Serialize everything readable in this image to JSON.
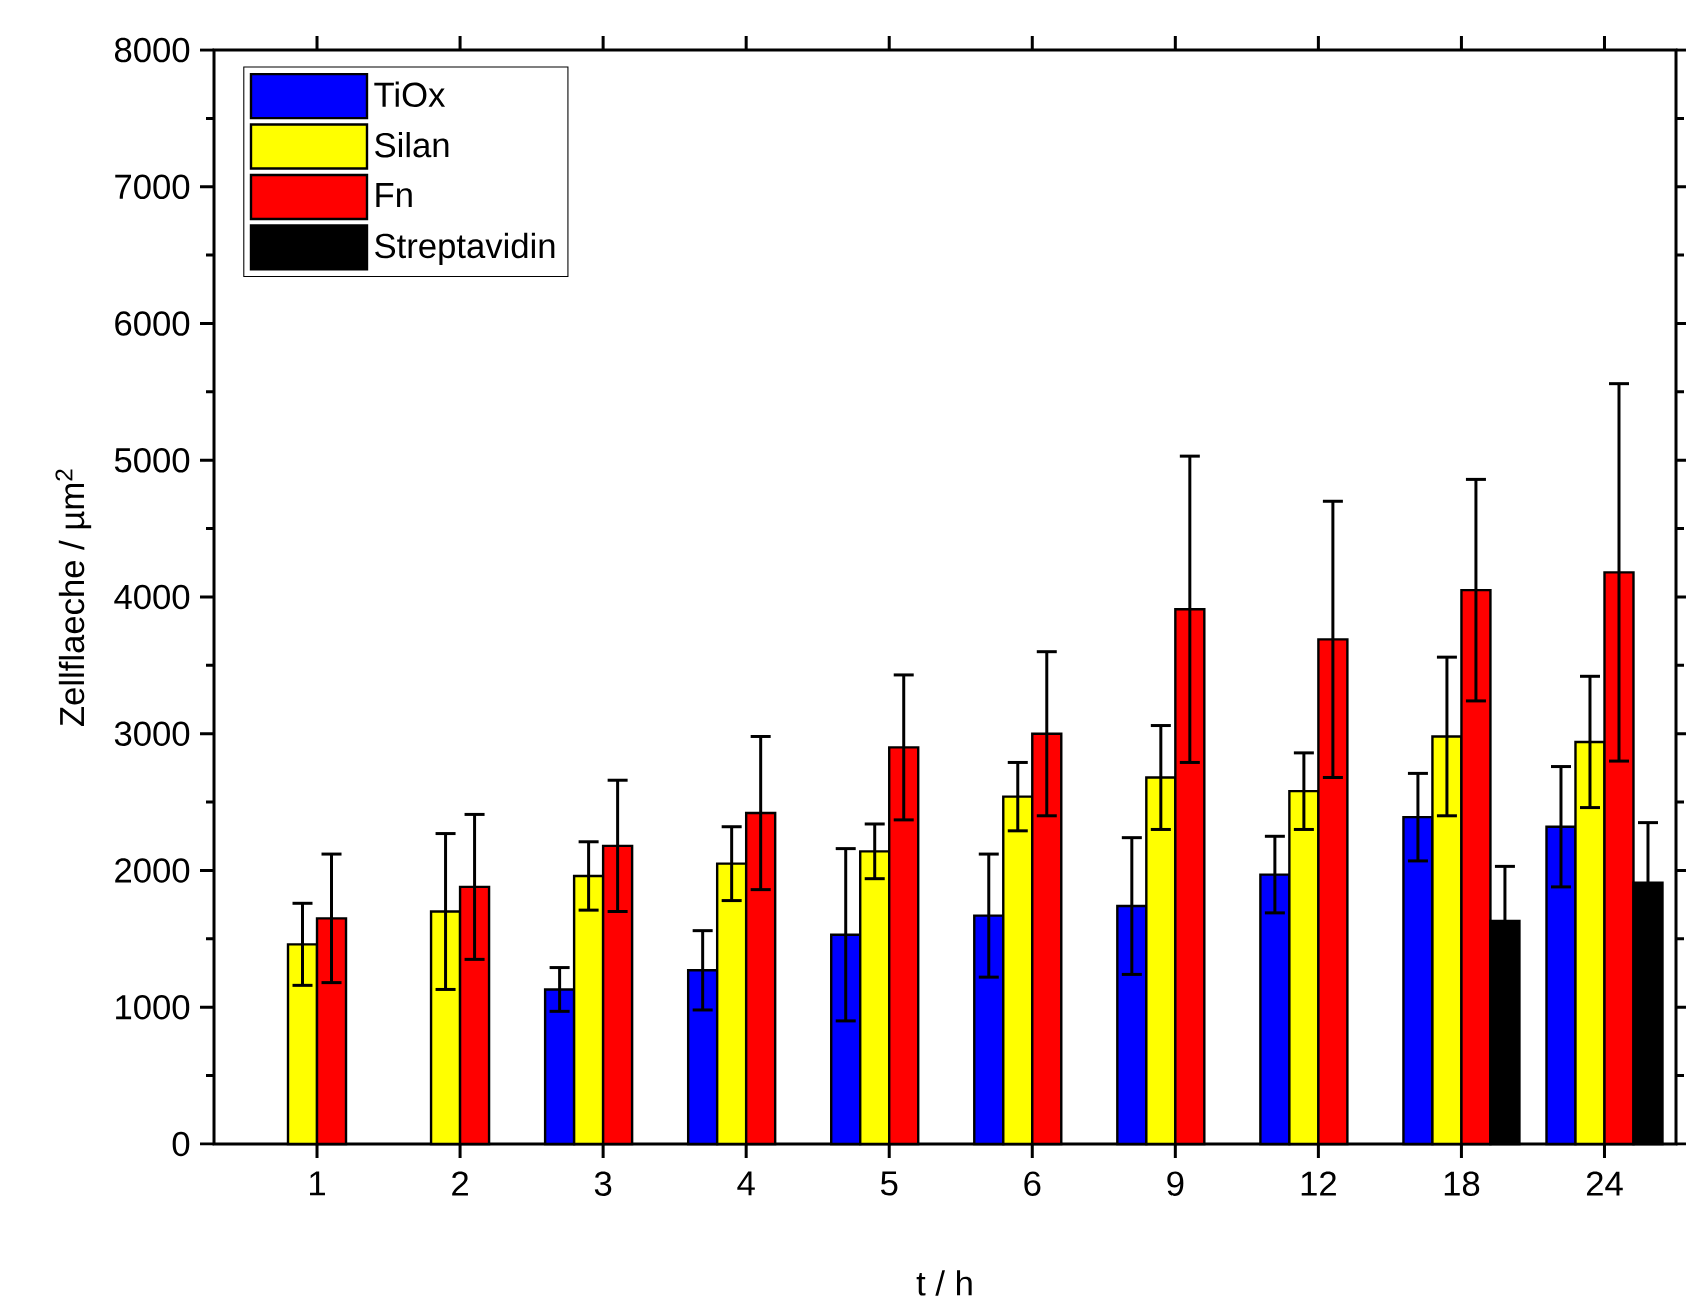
{
  "chart_data": {
    "type": "bar",
    "xlabel": "t / h",
    "ylabel": "Zellflaeche / µm$^{2}$",
    "categories": [
      "1",
      "2",
      "3",
      "4",
      "5",
      "6",
      "9",
      "12",
      "18",
      "24"
    ],
    "series": [
      {
        "name": "TiOx",
        "color": "#0000ff",
        "values": [
          null,
          null,
          1130,
          1270,
          1530,
          1670,
          1740,
          1970,
          2390,
          2320
        ],
        "errors": [
          null,
          null,
          160,
          290,
          630,
          450,
          500,
          280,
          320,
          440
        ]
      },
      {
        "name": "Silan",
        "color": "#ffff00",
        "values": [
          1460,
          1700,
          1960,
          2050,
          2140,
          2540,
          2680,
          2580,
          2980,
          2940
        ],
        "errors": [
          300,
          570,
          250,
          270,
          200,
          250,
          380,
          280,
          580,
          480
        ]
      },
      {
        "name": "Fn",
        "color": "#ff0000",
        "values": [
          1650,
          1880,
          2180,
          2420,
          2900,
          3000,
          3910,
          3690,
          4050,
          4180
        ],
        "errors": [
          470,
          530,
          480,
          560,
          530,
          600,
          1120,
          1010,
          810,
          1380
        ]
      },
      {
        "name": "Streptavidin",
        "color": "#000000",
        "values": [
          null,
          null,
          null,
          null,
          null,
          null,
          null,
          null,
          1630,
          1910
        ],
        "errors": [
          null,
          null,
          null,
          null,
          null,
          null,
          null,
          null,
          400,
          440
        ]
      }
    ],
    "ylim": [
      0,
      8000
    ],
    "yticks": [
      0,
      1000,
      2000,
      3000,
      4000,
      5000,
      6000,
      7000,
      8000
    ],
    "legend": "top left"
  }
}
